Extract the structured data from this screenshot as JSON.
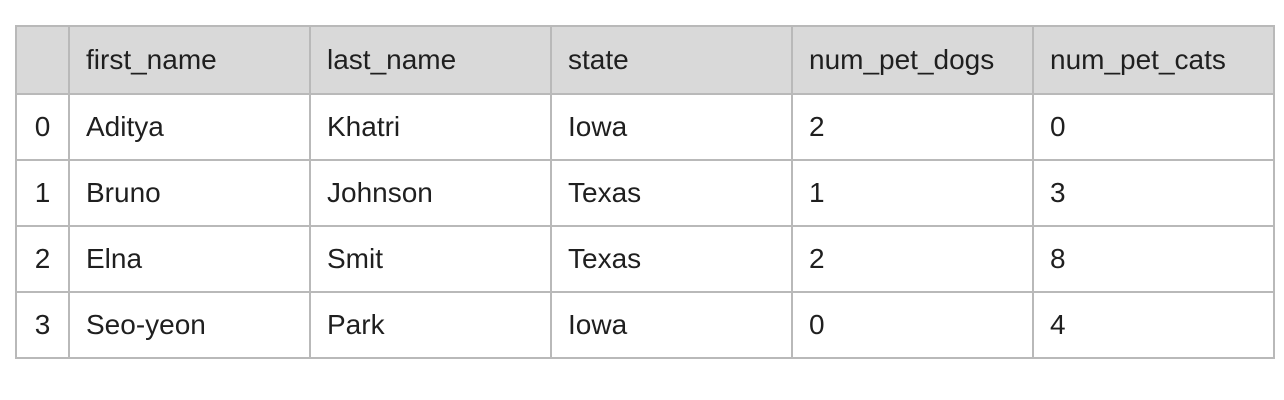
{
  "table": {
    "columns": [
      "",
      "first_name",
      "last_name",
      "state",
      "num_pet_dogs",
      "num_pet_cats"
    ],
    "rows": [
      [
        "0",
        "Aditya",
        "Khatri",
        "Iowa",
        "2",
        "0"
      ],
      [
        "1",
        "Bruno",
        "Johnson",
        "Texas",
        "1",
        "3"
      ],
      [
        "2",
        "Elna",
        "Smit",
        "Texas",
        "2",
        "8"
      ],
      [
        "3",
        "Seo-yeon",
        "Park",
        "Iowa",
        "0",
        "4"
      ]
    ]
  },
  "colors": {
    "header_background": "#d9d9d9",
    "border": "#b9b9b9",
    "text": "#1f1f1f"
  }
}
